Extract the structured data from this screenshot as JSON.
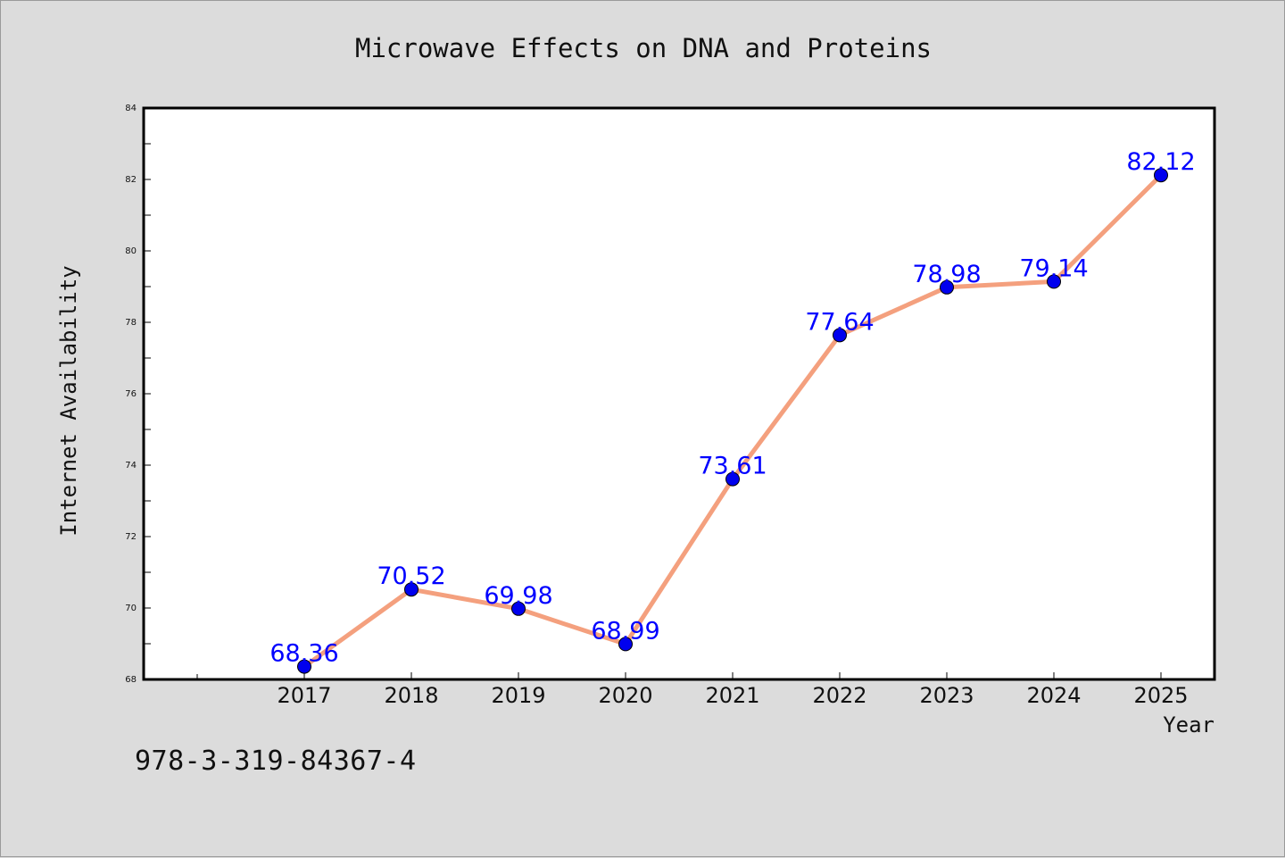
{
  "chart_data": {
    "type": "line",
    "title": "Microwave Effects on DNA and Proteins",
    "xlabel": "Year",
    "ylabel": "Internet Availability",
    "categories": [
      "2017",
      "2018",
      "2019",
      "2020",
      "2021",
      "2022",
      "2023",
      "2024",
      "2025"
    ],
    "series": [
      {
        "values": [
          68.36,
          70.52,
          69.98,
          68.99,
          73.61,
          77.64,
          78.98,
          79.14,
          82.12
        ],
        "labels": [
          "68.36",
          "70.52",
          "69.98",
          "68.99",
          "73.61",
          "77.64",
          "78.98",
          "79.14",
          "82.12"
        ],
        "line_color": "#f4a07e",
        "marker_color": "#0000ee",
        "label_color": "#0000ff"
      }
    ],
    "ylim": [
      68,
      84
    ],
    "yticks": [
      "68",
      "70",
      "72",
      "74",
      "76",
      "78",
      "80",
      "82",
      "84"
    ],
    "grid": false,
    "legend": "none"
  },
  "footer": {
    "isbn": "978-3-319-84367-4"
  },
  "colors": {
    "background": "#dcdcdc",
    "plot_background": "#ffffff"
  }
}
